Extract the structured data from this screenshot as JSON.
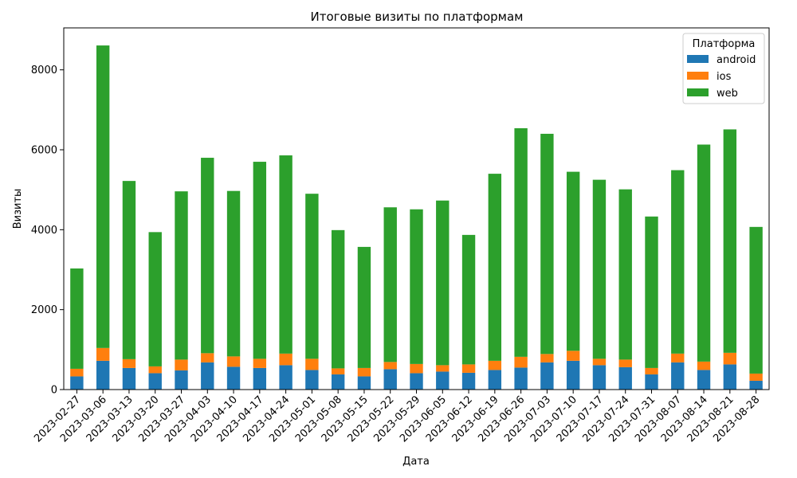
{
  "chart_data": {
    "type": "bar",
    "stacked": true,
    "title": "Итоговые визиты по платформам",
    "xlabel": "Дата",
    "ylabel": "Визиты",
    "ylim": [
      0,
      9050
    ],
    "yticks": [
      0,
      2000,
      4000,
      6000,
      8000
    ],
    "legend": {
      "title": "Платформа",
      "placement": "top-right"
    },
    "categories": [
      "2023-02-27",
      "2023-03-06",
      "2023-03-13",
      "2023-03-20",
      "2023-03-27",
      "2023-04-03",
      "2023-04-10",
      "2023-04-17",
      "2023-04-24",
      "2023-05-01",
      "2023-05-08",
      "2023-05-15",
      "2023-05-22",
      "2023-05-29",
      "2023-06-05",
      "2023-06-12",
      "2023-06-19",
      "2023-06-26",
      "2023-07-03",
      "2023-07-10",
      "2023-07-17",
      "2023-07-24",
      "2023-07-31",
      "2023-08-07",
      "2023-08-14",
      "2023-08-21",
      "2023-08-28"
    ],
    "series": [
      {
        "name": "android",
        "color": "#1f77b4",
        "values": [
          330,
          720,
          540,
          410,
          480,
          680,
          570,
          540,
          610,
          490,
          380,
          330,
          510,
          410,
          450,
          420,
          490,
          550,
          680,
          720,
          610,
          560,
          380,
          680,
          490,
          630,
          220
        ]
      },
      {
        "name": "ios",
        "color": "#ff7f0e",
        "values": [
          190,
          320,
          220,
          170,
          270,
          230,
          260,
          230,
          290,
          280,
          150,
          210,
          180,
          230,
          160,
          210,
          230,
          270,
          210,
          250,
          160,
          190,
          160,
          220,
          210,
          290,
          180
        ]
      },
      {
        "name": "web",
        "color": "#2ca02c",
        "values": [
          2510,
          7570,
          4460,
          3360,
          4210,
          4890,
          4140,
          4930,
          4960,
          4130,
          3460,
          3030,
          3870,
          3870,
          4120,
          3240,
          4680,
          5720,
          5510,
          4480,
          4480,
          4260,
          3790,
          4590,
          5430,
          5590,
          3670
        ]
      }
    ]
  }
}
